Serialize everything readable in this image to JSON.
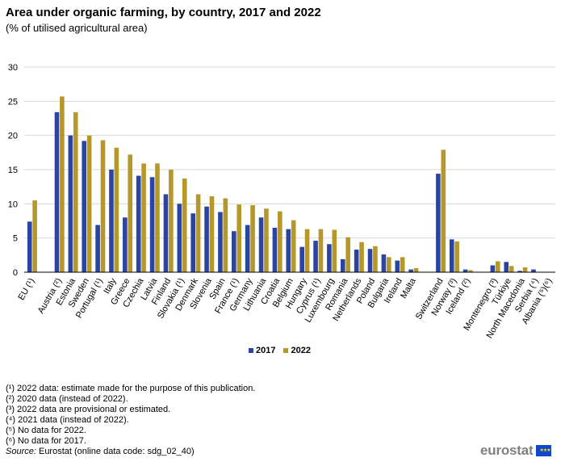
{
  "title": "Area under organic farming, by country, 2017 and 2022",
  "subtitle": "(% of utilised agricultural area)",
  "colors": {
    "series_2017": "#2a44a3",
    "series_2022": "#b5972a",
    "grid": "#d9d9d9",
    "axis": "#000000"
  },
  "chart_data": {
    "type": "bar",
    "categories": [
      "EU (¹)",
      "Austria (²)",
      "Estonia",
      "Sweden",
      "Portugal (¹)",
      "Italy",
      "Greece",
      "Czechia",
      "Latvia",
      "Finland",
      "Slovakia (¹)",
      "Denmark",
      "Slovenia",
      "Spain",
      "France (¹)",
      "Germany",
      "Lithuania",
      "Croatia",
      "Belgium",
      "Hungary",
      "Cyprus (¹)",
      "Luxembourg",
      "Romania",
      "Netherlands",
      "Poland",
      "Bulgaria",
      "Ireland",
      "Malta",
      "Switzerland",
      "Norway (³)",
      "Iceland (²)",
      "Montenegro (³)",
      "Türkiye",
      "North Macedonia",
      "Serbia (⁴)",
      "Albania (⁵)(⁶)"
    ],
    "groups_gap_after": [
      0,
      27,
      30
    ],
    "series": [
      {
        "name": "2017",
        "values": [
          7.4,
          23.4,
          20.0,
          19.2,
          6.9,
          15.0,
          8.0,
          14.1,
          13.9,
          11.4,
          10.0,
          8.6,
          9.6,
          8.8,
          6.0,
          6.9,
          8.0,
          6.5,
          6.3,
          3.7,
          4.6,
          4.1,
          1.9,
          3.3,
          3.4,
          2.6,
          1.7,
          0.4,
          14.4,
          4.8,
          0.4,
          1.0,
          1.5,
          0.2,
          0.4,
          null
        ]
      },
      {
        "name": "2022",
        "values": [
          10.5,
          25.7,
          23.4,
          20.0,
          19.3,
          18.2,
          17.2,
          15.9,
          15.9,
          15.0,
          13.7,
          11.4,
          11.1,
          10.8,
          9.9,
          9.8,
          9.3,
          8.9,
          7.6,
          6.3,
          6.3,
          6.2,
          5.1,
          4.4,
          3.8,
          2.2,
          2.2,
          0.6,
          17.9,
          4.5,
          0.3,
          1.6,
          0.9,
          0.7,
          null,
          null
        ]
      }
    ],
    "ylim": [
      0,
      30
    ],
    "yticks": [
      0,
      5,
      10,
      15,
      20,
      25,
      30
    ],
    "grid": true,
    "legend_position": "bottom-center"
  },
  "legend": [
    {
      "label": "2017"
    },
    {
      "label": "2022"
    }
  ],
  "footnotes": [
    "(¹) 2022 data: estimate made for the purpose of this publication.",
    "(²) 2020 data (instead of 2022).",
    "(³) 2022 data are provisional or estimated.",
    "(⁴) 2021 data (instead of 2022).",
    "(⁵) No data for 2022.",
    "(⁶) No data for 2017."
  ],
  "source": {
    "label": "Source:",
    "text": " Eurostat (online data code: sdg_02_40)"
  },
  "brand": {
    "name": "eurostat",
    "flag_icon": "eu-flag-icon",
    "flag_stars": "★★★"
  }
}
